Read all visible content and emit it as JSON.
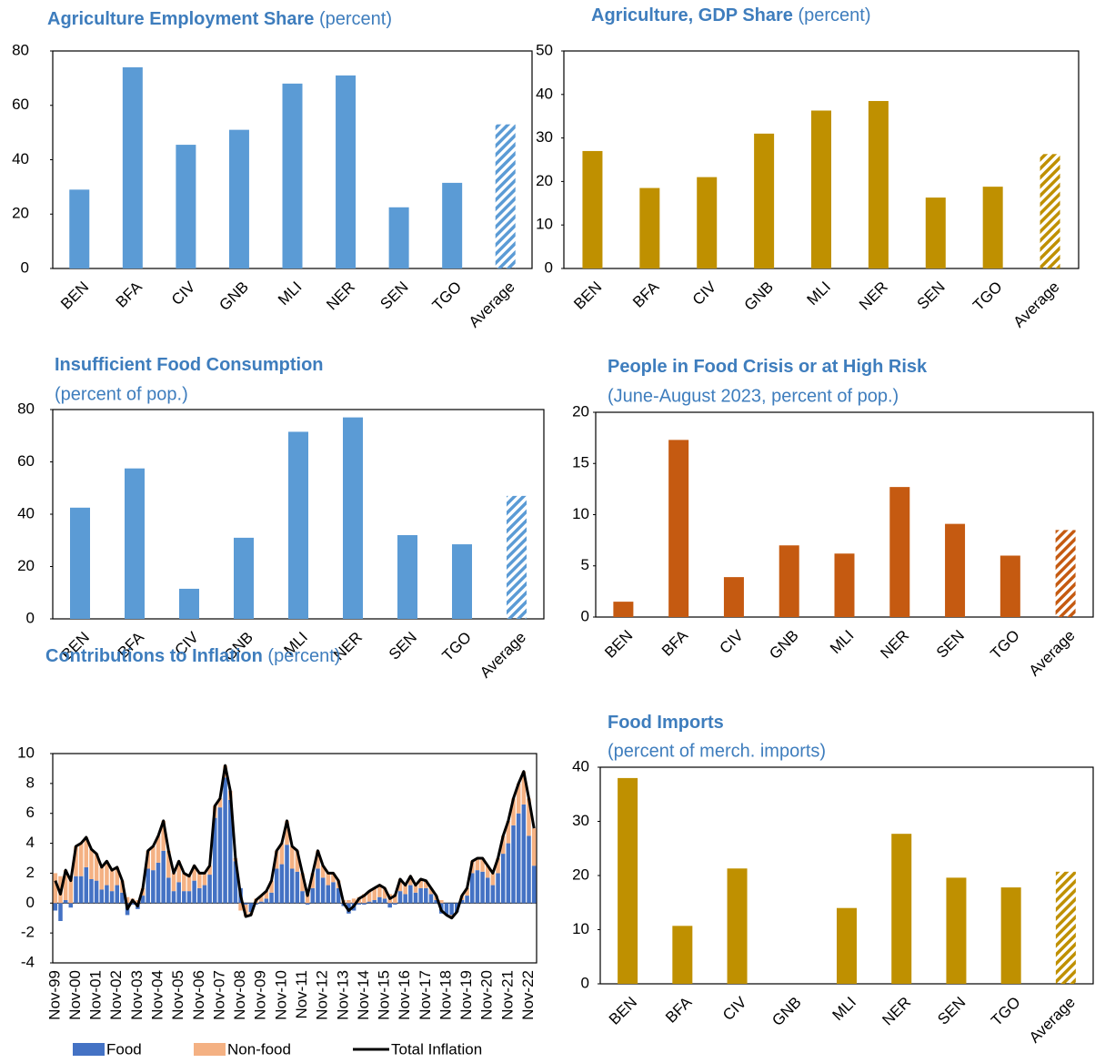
{
  "chart_data": [
    {
      "type": "bar",
      "title": "Agriculture Employment Share",
      "unit": "(percent)",
      "categories": [
        "BEN",
        "BFA",
        "CIV",
        "GNB",
        "MLI",
        "NER",
        "SEN",
        "TGO",
        "Average"
      ],
      "values": [
        29,
        74,
        45.5,
        51,
        68,
        71,
        22.5,
        31.5,
        53
      ],
      "hatched": [
        false,
        false,
        false,
        false,
        false,
        false,
        false,
        false,
        true
      ],
      "color": "#5b9bd5",
      "ylim": [
        0,
        80
      ],
      "yticks": [
        0,
        20,
        40,
        60,
        80
      ]
    },
    {
      "type": "bar",
      "title": "Agriculture, GDP Share",
      "unit": "(percent)",
      "categories": [
        "BEN",
        "BFA",
        "CIV",
        "GNB",
        "MLI",
        "NER",
        "SEN",
        "TGO",
        "Average"
      ],
      "values": [
        27,
        18.5,
        21,
        31,
        36.3,
        38.5,
        16.3,
        18.8,
        26.3
      ],
      "hatched": [
        false,
        false,
        false,
        false,
        false,
        false,
        false,
        false,
        true
      ],
      "color": "#bf9000",
      "ylim": [
        0,
        50
      ],
      "yticks": [
        0,
        10,
        20,
        30,
        40,
        50
      ]
    },
    {
      "type": "bar",
      "title": "Insufficient Food Consumption",
      "subtitle": "(percent of pop.)",
      "categories": [
        "BEN",
        "BFA",
        "CIV",
        "GNB",
        "MLI",
        "NER",
        "SEN",
        "TGO",
        "Average"
      ],
      "values": [
        42.5,
        57.5,
        11.5,
        31,
        71.5,
        77,
        32,
        28.5,
        47
      ],
      "hatched": [
        false,
        false,
        false,
        false,
        false,
        false,
        false,
        false,
        true
      ],
      "color": "#5b9bd5",
      "ylim": [
        0,
        80
      ],
      "yticks": [
        0,
        20,
        40,
        60,
        80
      ]
    },
    {
      "type": "bar",
      "title": "People in Food Crisis or at High Risk",
      "subtitle": "(June-August 2023, percent of pop.)",
      "categories": [
        "BEN",
        "BFA",
        "CIV",
        "GNB",
        "MLI",
        "NER",
        "SEN",
        "TGO",
        "Average"
      ],
      "values": [
        1.5,
        17.3,
        3.9,
        7.0,
        6.2,
        12.7,
        9.1,
        6.0,
        8.5
      ],
      "hatched": [
        false,
        false,
        false,
        false,
        false,
        false,
        false,
        false,
        true
      ],
      "color": "#c55a11",
      "ylim": [
        0,
        20
      ],
      "yticks": [
        0,
        5,
        10,
        15,
        20
      ]
    },
    {
      "type": "stacked_bar_line",
      "title": "Contributions to Inflation",
      "unit": "(percent)",
      "categories": [
        "Nov-99",
        null,
        null,
        null,
        "Nov-00",
        null,
        null,
        null,
        "Nov-01",
        null,
        null,
        null,
        "Nov-02",
        null,
        null,
        null,
        "Nov-03",
        null,
        null,
        null,
        "Nov-04",
        null,
        null,
        null,
        "Nov-05",
        null,
        null,
        null,
        "Nov-06",
        null,
        null,
        null,
        "Nov-07",
        null,
        null,
        null,
        "Nov-08",
        null,
        null,
        null,
        "Nov-09",
        null,
        null,
        null,
        "Nov-10",
        null,
        null,
        null,
        "Nov-11",
        null,
        null,
        null,
        "Nov-12",
        null,
        null,
        null,
        "Nov-13",
        null,
        null,
        null,
        "Nov-14",
        null,
        null,
        null,
        "Nov-15",
        null,
        null,
        null,
        "Nov-16",
        null,
        null,
        null,
        "Nov-17",
        null,
        null,
        null,
        "Nov-18",
        null,
        null,
        null,
        "Nov-19",
        null,
        null,
        null,
        "Nov-20",
        null,
        null,
        null,
        "Nov-21",
        null,
        null,
        null,
        "Nov-22",
        null
      ],
      "series": [
        {
          "name": "Food",
          "type": "bar",
          "color": "#4472c4",
          "values": [
            -0.5,
            -1.2,
            0.2,
            -0.3,
            1.8,
            1.8,
            2.4,
            1.6,
            1.5,
            0.9,
            1.2,
            0.8,
            1.2,
            0.7,
            -0.8,
            -0.1,
            -0.4,
            0.5,
            2.3,
            2.2,
            2.7,
            3.5,
            1.7,
            0.8,
            1.4,
            0.8,
            0.8,
            1.5,
            1.0,
            1.2,
            1.9,
            5.7,
            6.4,
            8.4,
            6.9,
            2.8,
            1.0,
            -0.1,
            -0.6,
            -0.1,
            0.1,
            0.3,
            0.7,
            2.3,
            2.6,
            3.9,
            2.3,
            2.1,
            0.8,
            -0.1,
            1.0,
            2.3,
            1.7,
            1.2,
            1.4,
            1.0,
            -0.2,
            -0.7,
            -0.5,
            -0.1,
            -0.1,
            0.1,
            0.2,
            0.4,
            0.3,
            -0.3,
            -0.1,
            0.8,
            0.6,
            1.2,
            0.7,
            1.0,
            1.0,
            0.6,
            0.2,
            -0.7,
            -0.8,
            -0.8,
            -0.6,
            0.2,
            0.5,
            2.0,
            2.2,
            2.1,
            1.7,
            1.2,
            2.0,
            3.3,
            4.0,
            5.2,
            6.0,
            6.6,
            4.5,
            2.5
          ]
        },
        {
          "name": "Non-food",
          "type": "bar",
          "color": "#f4b183",
          "values": [
            2.0,
            1.8,
            2.0,
            1.8,
            2.0,
            2.2,
            2.0,
            2.0,
            1.8,
            1.5,
            1.6,
            1.4,
            1.2,
            0.8,
            0.4,
            0.3,
            0.2,
            0.5,
            1.2,
            1.6,
            1.8,
            2.0,
            1.8,
            1.2,
            1.4,
            1.2,
            1.0,
            1.0,
            1.0,
            0.8,
            0.6,
            0.8,
            0.6,
            0.8,
            0.6,
            0.2,
            -0.5,
            -0.8,
            -0.2,
            0.3,
            0.4,
            0.5,
            0.8,
            1.2,
            1.4,
            1.6,
            1.5,
            1.4,
            1.2,
            0.6,
            1.0,
            1.2,
            0.8,
            0.8,
            0.6,
            0.5,
            0.2,
            0.2,
            0.3,
            0.4,
            0.6,
            0.7,
            0.8,
            0.8,
            0.7,
            0.6,
            0.6,
            0.8,
            0.6,
            0.6,
            0.5,
            0.6,
            0.5,
            0.4,
            0.3,
            0.2,
            0.0,
            -0.2,
            0.0,
            0.3,
            0.5,
            0.8,
            0.8,
            0.9,
            0.8,
            0.8,
            1.0,
            1.2,
            1.5,
            1.8,
            2.0,
            2.2,
            2.5,
            2.5
          ]
        },
        {
          "name": "Total Inflation",
          "type": "line",
          "color": "#000000",
          "values": [
            1.5,
            0.6,
            2.2,
            1.5,
            3.8,
            4.0,
            4.4,
            3.6,
            3.3,
            2.4,
            2.8,
            2.2,
            2.4,
            1.5,
            -0.4,
            0.2,
            -0.2,
            1.0,
            3.5,
            3.8,
            4.5,
            5.5,
            3.5,
            2.0,
            2.8,
            2.0,
            1.8,
            2.5,
            2.0,
            2.0,
            2.5,
            6.5,
            7.0,
            9.2,
            7.5,
            3.0,
            0.5,
            -0.9,
            -0.8,
            0.2,
            0.5,
            0.8,
            1.5,
            3.5,
            4.0,
            5.5,
            3.8,
            3.5,
            2.0,
            0.5,
            2.0,
            3.5,
            2.5,
            2.0,
            2.0,
            1.5,
            0.0,
            -0.5,
            -0.2,
            0.3,
            0.5,
            0.8,
            1.0,
            1.2,
            1.0,
            0.3,
            0.5,
            1.6,
            1.2,
            1.8,
            1.2,
            1.6,
            1.5,
            1.0,
            0.5,
            -0.5,
            -0.8,
            -1.0,
            -0.6,
            0.5,
            1.0,
            2.8,
            3.0,
            3.0,
            2.5,
            2.0,
            3.0,
            4.5,
            5.5,
            7.0,
            8.0,
            8.8,
            7.0,
            5.0
          ]
        }
      ],
      "ylim": [
        -4,
        10
      ],
      "yticks": [
        -4,
        -2,
        0,
        2,
        4,
        6,
        8,
        10
      ]
    },
    {
      "type": "bar",
      "title": "Food Imports",
      "subtitle": "(percent of merch. imports)",
      "categories": [
        "BEN",
        "BFA",
        "CIV",
        "GNB",
        "MLI",
        "NER",
        "SEN",
        "TGO",
        "Average"
      ],
      "values": [
        38,
        10.7,
        21.3,
        null,
        14,
        27.7,
        19.6,
        17.8,
        20.7
      ],
      "hatched": [
        false,
        false,
        false,
        false,
        false,
        false,
        false,
        false,
        true
      ],
      "color": "#bf9000",
      "ylim": [
        0,
        40
      ],
      "yticks": [
        0,
        10,
        20,
        30,
        40
      ]
    }
  ]
}
